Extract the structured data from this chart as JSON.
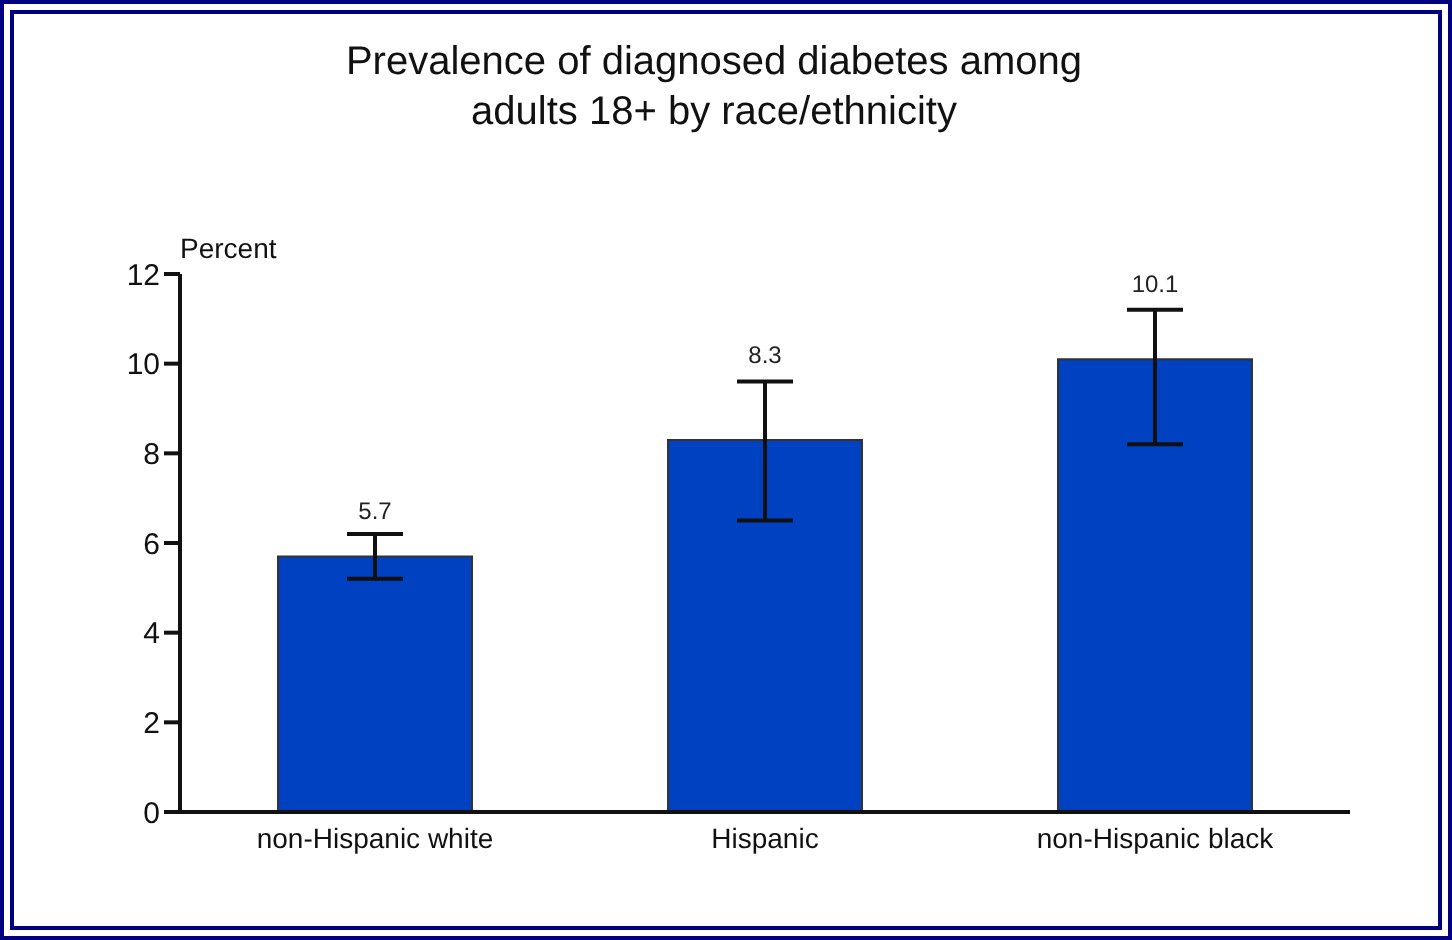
{
  "chart_data": {
    "type": "bar",
    "title": "Prevalence of diagnosed diabetes among\nadults 18+ by race/ethnicity",
    "ylabel": "Percent",
    "categories": [
      "non-Hispanic white",
      "Hispanic",
      "non-Hispanic black"
    ],
    "values": [
      5.7,
      8.3,
      10.1
    ],
    "color": "#0041c2",
    "errors": [
      [
        5.2,
        6.2
      ],
      [
        6.5,
        9.6
      ],
      [
        8.2,
        11.2
      ]
    ],
    "data_labels": true,
    "ylim": [
      0,
      12
    ],
    "yticks": [
      0,
      2,
      4,
      6,
      8,
      10,
      12
    ],
    "grid": false,
    "legend": false
  }
}
